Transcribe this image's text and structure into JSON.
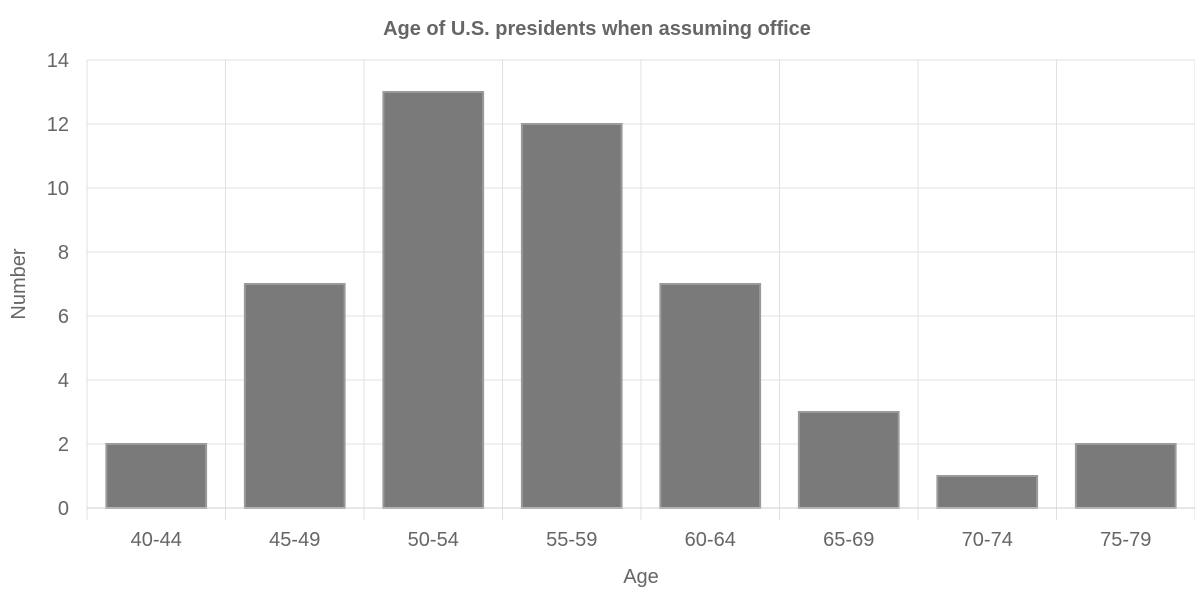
{
  "chart_data": {
    "type": "bar",
    "title": "Age of U.S. presidents when assuming office",
    "xlabel": "Age",
    "ylabel": "Number",
    "categories": [
      "40-44",
      "45-49",
      "50-54",
      "55-59",
      "60-64",
      "65-69",
      "70-74",
      "75-79"
    ],
    "values": [
      2,
      7,
      13,
      12,
      7,
      3,
      1,
      2
    ],
    "ylim": [
      0,
      14
    ],
    "yticks": [
      0,
      2,
      4,
      6,
      8,
      10,
      12,
      14
    ],
    "grid": true,
    "legend": "none",
    "colors": {
      "bar_fill": "#7a7a7a",
      "bar_stroke": "#9a9a9a",
      "text": "#666666",
      "grid": "#e0e0e0"
    }
  }
}
